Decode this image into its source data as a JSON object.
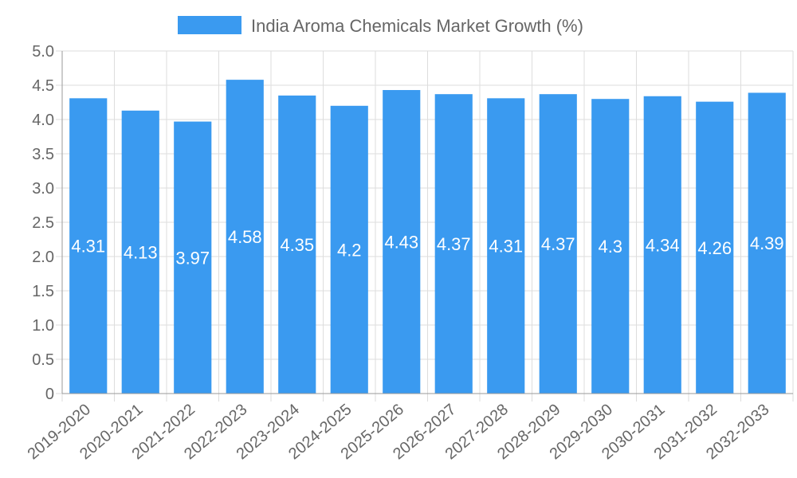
{
  "chart_data": {
    "type": "bar",
    "title": "",
    "xlabel": "",
    "ylabel": "",
    "legend": {
      "placement": "top-center",
      "entries": [
        "India Aroma Chemicals Market Growth (%)"
      ]
    },
    "categories": [
      "2019-2020",
      "2020-2021",
      "2021-2022",
      "2022-2023",
      "2023-2024",
      "2024-2025",
      "2025-2026",
      "2026-2027",
      "2027-2028",
      "2028-2029",
      "2029-2030",
      "2030-2031",
      "2031-2032",
      "2032-2033"
    ],
    "series": [
      {
        "name": "India Aroma Chemicals Market Growth (%)",
        "color": "#3a9af0",
        "values": [
          4.31,
          4.13,
          3.97,
          4.58,
          4.35,
          4.2,
          4.43,
          4.37,
          4.31,
          4.37,
          4.3,
          4.34,
          4.26,
          4.39
        ]
      }
    ],
    "ylim": [
      0,
      5
    ],
    "yticks": [
      "0",
      "0.5",
      "1.0",
      "1.5",
      "2.0",
      "2.5",
      "3.0",
      "3.5",
      "4.0",
      "4.5",
      "5.0"
    ],
    "grid": true
  }
}
